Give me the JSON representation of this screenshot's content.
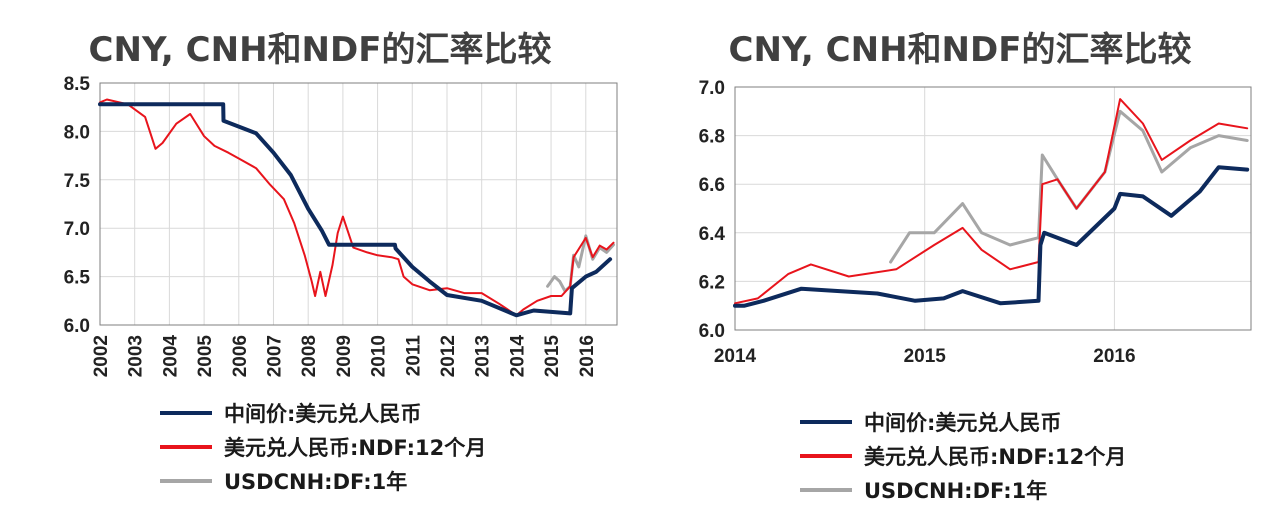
{
  "colors": {
    "cny": "#0d2a5c",
    "ndf": "#e8141c",
    "cnh": "#a6a6a6",
    "grid": "#d9d9d9"
  },
  "legend": [
    {
      "label": "中间价:美元兑人民币",
      "color": "#0d2a5c"
    },
    {
      "label": "美元兑人民币:NDF:12个月",
      "color": "#e8141c"
    },
    {
      "label": "USDCNH:DF:1年",
      "color": "#a6a6a6"
    }
  ],
  "chart_data": [
    {
      "type": "line",
      "title": "CNY, CNH和NDF的汇率比较",
      "ylim": [
        6.0,
        8.5
      ],
      "yticks": [
        "6.0",
        "6.5",
        "7.0",
        "7.5",
        "8.0",
        "8.5"
      ],
      "xlim": [
        2002,
        2016.9
      ],
      "xticks": [
        "2002",
        "2003",
        "2004",
        "2005",
        "2006",
        "2007",
        "2008",
        "2009",
        "2010",
        "2011",
        "2012",
        "2013",
        "2014",
        "2015",
        "2016"
      ],
      "grid": true,
      "series": [
        {
          "name": "中间价:美元兑人民币",
          "key": "cny",
          "x": [
            2002,
            2005.55,
            2005.56,
            2006,
            2006.5,
            2007,
            2007.5,
            2008,
            2008.4,
            2008.6,
            2010.5,
            2010.52,
            2011,
            2011.5,
            2012,
            2013,
            2014,
            2014.5,
            2015.55,
            2015.6,
            2016,
            2016.3,
            2016.7
          ],
          "y": [
            8.28,
            8.28,
            8.11,
            8.05,
            7.98,
            7.78,
            7.55,
            7.2,
            6.97,
            6.83,
            6.83,
            6.79,
            6.6,
            6.45,
            6.31,
            6.25,
            6.1,
            6.15,
            6.12,
            6.38,
            6.5,
            6.55,
            6.68
          ]
        },
        {
          "name": "美元兑人民币:NDF:12个月",
          "key": "ndf",
          "x": [
            2002,
            2002.2,
            2002.8,
            2003.3,
            2003.6,
            2003.8,
            2004.2,
            2004.6,
            2005,
            2005.3,
            2005.7,
            2006,
            2006.5,
            2006.9,
            2007.3,
            2007.6,
            2007.9,
            2008.1,
            2008.2,
            2008.35,
            2008.5,
            2008.7,
            2008.85,
            2009,
            2009.3,
            2009.7,
            2010,
            2010.4,
            2010.6,
            2010.75,
            2011,
            2011.5,
            2012,
            2012.5,
            2013,
            2013.5,
            2014,
            2014.2,
            2014.6,
            2015,
            2015.3,
            2015.55,
            2015.65,
            2016,
            2016.2,
            2016.4,
            2016.6,
            2016.8
          ],
          "y": [
            8.3,
            8.33,
            8.28,
            8.15,
            7.82,
            7.88,
            8.08,
            8.18,
            7.95,
            7.85,
            7.78,
            7.72,
            7.62,
            7.45,
            7.3,
            7.05,
            6.72,
            6.45,
            6.3,
            6.55,
            6.3,
            6.62,
            6.95,
            7.12,
            6.8,
            6.75,
            6.72,
            6.7,
            6.68,
            6.5,
            6.42,
            6.36,
            6.38,
            6.33,
            6.33,
            6.22,
            6.1,
            6.16,
            6.25,
            6.3,
            6.3,
            6.4,
            6.7,
            6.9,
            6.7,
            6.82,
            6.78,
            6.85
          ]
        },
        {
          "name": "USDCNH:DF:1年",
          "key": "cnh",
          "x": [
            2014.9,
            2015.1,
            2015.25,
            2015.4,
            2015.55,
            2015.65,
            2015.8,
            2016,
            2016.2,
            2016.4,
            2016.6,
            2016.8
          ],
          "y": [
            6.4,
            6.5,
            6.45,
            6.35,
            6.4,
            6.72,
            6.6,
            6.92,
            6.68,
            6.8,
            6.75,
            6.83
          ]
        }
      ]
    },
    {
      "type": "line",
      "title": "CNY, CNH和NDF的汇率比较",
      "ylim": [
        6.0,
        7.0
      ],
      "yticks": [
        "6.0",
        "6.2",
        "6.4",
        "6.6",
        "6.8",
        "7.0"
      ],
      "xlim": [
        2014,
        2016.72
      ],
      "xticks": [
        "2014",
        "2015",
        "2016"
      ],
      "grid": true,
      "series": [
        {
          "name": "中间价:美元兑人民币",
          "key": "cny",
          "x": [
            2014,
            2014.05,
            2014.15,
            2014.35,
            2014.55,
            2014.75,
            2014.95,
            2015.1,
            2015.2,
            2015.4,
            2015.6,
            2015.61,
            2015.63,
            2015.8,
            2016,
            2016.03,
            2016.15,
            2016.3,
            2016.45,
            2016.55,
            2016.7
          ],
          "y": [
            6.1,
            6.1,
            6.12,
            6.17,
            6.16,
            6.15,
            6.12,
            6.13,
            6.16,
            6.11,
            6.12,
            6.35,
            6.4,
            6.35,
            6.5,
            6.56,
            6.55,
            6.47,
            6.57,
            6.67,
            6.66
          ]
        },
        {
          "name": "美元兑人民币:NDF:12个月",
          "key": "ndf",
          "x": [
            2014,
            2014.12,
            2014.28,
            2014.4,
            2014.6,
            2014.85,
            2015.05,
            2015.2,
            2015.3,
            2015.45,
            2015.6,
            2015.62,
            2015.7,
            2015.8,
            2015.95,
            2016.03,
            2016.15,
            2016.25,
            2016.4,
            2016.55,
            2016.7
          ],
          "y": [
            6.11,
            6.13,
            6.23,
            6.27,
            6.22,
            6.25,
            6.35,
            6.42,
            6.33,
            6.25,
            6.28,
            6.6,
            6.62,
            6.5,
            6.65,
            6.95,
            6.85,
            6.7,
            6.78,
            6.85,
            6.83
          ]
        },
        {
          "name": "USDCNH:DF:1年",
          "key": "cnh",
          "x": [
            2014.82,
            2014.92,
            2015.05,
            2015.2,
            2015.3,
            2015.45,
            2015.6,
            2015.62,
            2015.7,
            2015.8,
            2015.95,
            2016.03,
            2016.15,
            2016.25,
            2016.4,
            2016.55,
            2016.7
          ],
          "y": [
            6.28,
            6.4,
            6.4,
            6.52,
            6.4,
            6.35,
            6.38,
            6.72,
            6.62,
            6.5,
            6.65,
            6.9,
            6.82,
            6.65,
            6.75,
            6.8,
            6.78
          ]
        }
      ]
    }
  ]
}
